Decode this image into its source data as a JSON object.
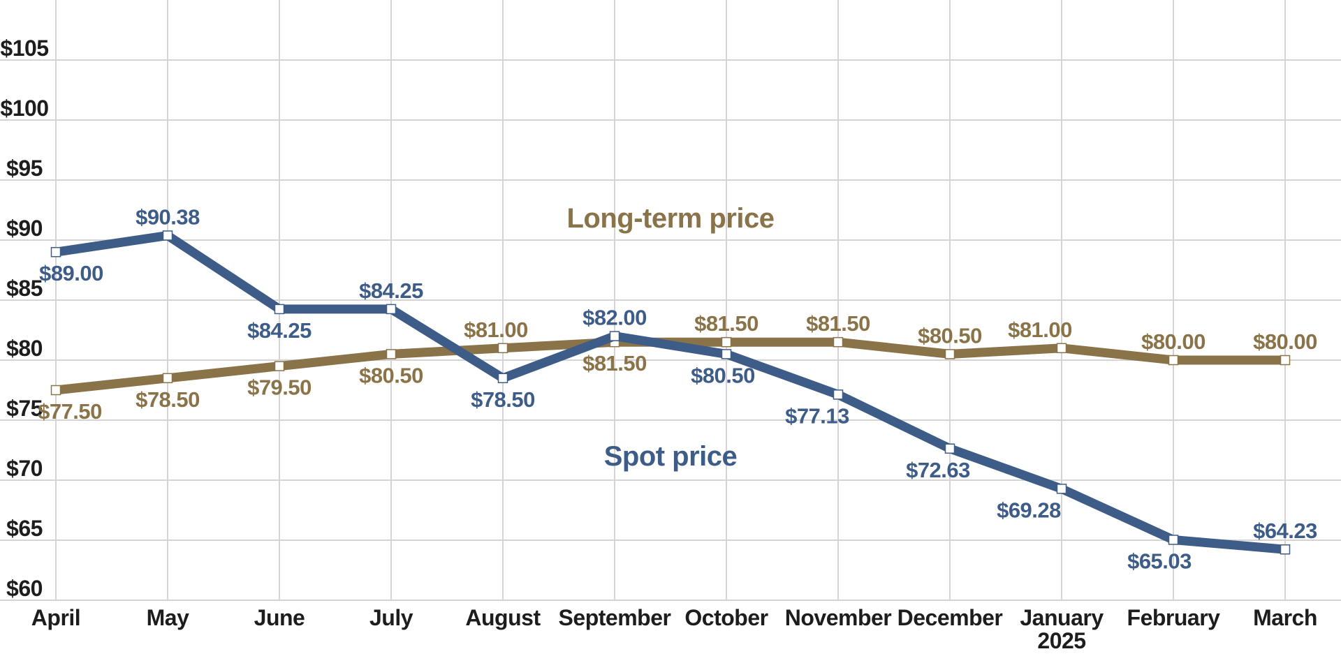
{
  "chart_data": {
    "type": "line",
    "title": "",
    "categories": [
      "April",
      "May",
      "June",
      "July",
      "August",
      "September",
      "October",
      "November",
      "December",
      "January",
      "February",
      "March"
    ],
    "x_axis": {
      "year_note": {
        "month": "January",
        "text": "2025"
      }
    },
    "y_axis": {
      "ticks": [
        {
          "value": 105,
          "label": "$105"
        },
        {
          "value": 100,
          "label": "$100"
        },
        {
          "value": 95,
          "label": "$95"
        },
        {
          "value": 90,
          "label": "$90"
        },
        {
          "value": 85,
          "label": "$85"
        },
        {
          "value": 80,
          "label": "$80"
        },
        {
          "value": 75,
          "label": "$75"
        },
        {
          "value": 70,
          "label": "$70"
        },
        {
          "value": 65,
          "label": "$65"
        },
        {
          "value": 60,
          "label": "$60"
        }
      ],
      "range_shown": [
        60,
        105
      ],
      "gridline_step": 5
    },
    "grid": {
      "horizontal": true,
      "vertical": true,
      "color": "#d4d4d4"
    },
    "legend_position": "none-labels-on-chart",
    "series": [
      {
        "name": "Spot price",
        "color": "#3e5c88",
        "values": [
          89.0,
          90.38,
          84.25,
          84.25,
          78.5,
          82.0,
          80.5,
          77.13,
          72.63,
          69.28,
          65.03,
          64.23
        ],
        "data_labels": [
          {
            "text": "$89.00",
            "position": "below",
            "dx": 22
          },
          {
            "text": "$90.38",
            "position": "above",
            "dx": 0
          },
          {
            "text": "$84.25",
            "position": "below",
            "dx": 0
          },
          {
            "text": "$84.25",
            "position": "above",
            "dx": 0
          },
          {
            "text": "$78.50",
            "position": "below",
            "dx": 0
          },
          {
            "text": "$82.00",
            "position": "above",
            "dx": 0
          },
          {
            "text": "$80.50",
            "position": "below",
            "dx": -5
          },
          {
            "text": "$77.13",
            "position": "below",
            "dx": -30
          },
          {
            "text": "$72.63",
            "position": "below",
            "dx": -17
          },
          {
            "text": "$69.28",
            "position": "below",
            "dx": -47
          },
          {
            "text": "$65.03",
            "position": "below",
            "dx": -20
          },
          {
            "text": "$64.23",
            "position": "above",
            "dx": 0
          }
        ]
      },
      {
        "name": "Long-term price",
        "color": "#8a7348",
        "values": [
          77.5,
          78.5,
          79.5,
          80.5,
          81.0,
          81.5,
          81.5,
          81.5,
          80.5,
          81.0,
          80.0,
          80.0
        ],
        "data_labels": [
          {
            "text": "$77.50",
            "position": "below",
            "dx": 20
          },
          {
            "text": "$78.50",
            "position": "below",
            "dx": 0
          },
          {
            "text": "$79.50",
            "position": "below",
            "dx": 0
          },
          {
            "text": "$80.50",
            "position": "below",
            "dx": 0
          },
          {
            "text": "$81.00",
            "position": "above",
            "dx": -10
          },
          {
            "text": "$81.50",
            "position": "below",
            "dx": 0
          },
          {
            "text": "$81.50",
            "position": "above",
            "dx": 0
          },
          {
            "text": "$81.50",
            "position": "above",
            "dx": 0
          },
          {
            "text": "$80.50",
            "position": "above",
            "dx": 0
          },
          {
            "text": "$81.00",
            "position": "above",
            "dx": -31
          },
          {
            "text": "$80.00",
            "position": "above",
            "dx": 0
          },
          {
            "text": "$80.00",
            "position": "above",
            "dx": 0
          }
        ]
      }
    ]
  }
}
